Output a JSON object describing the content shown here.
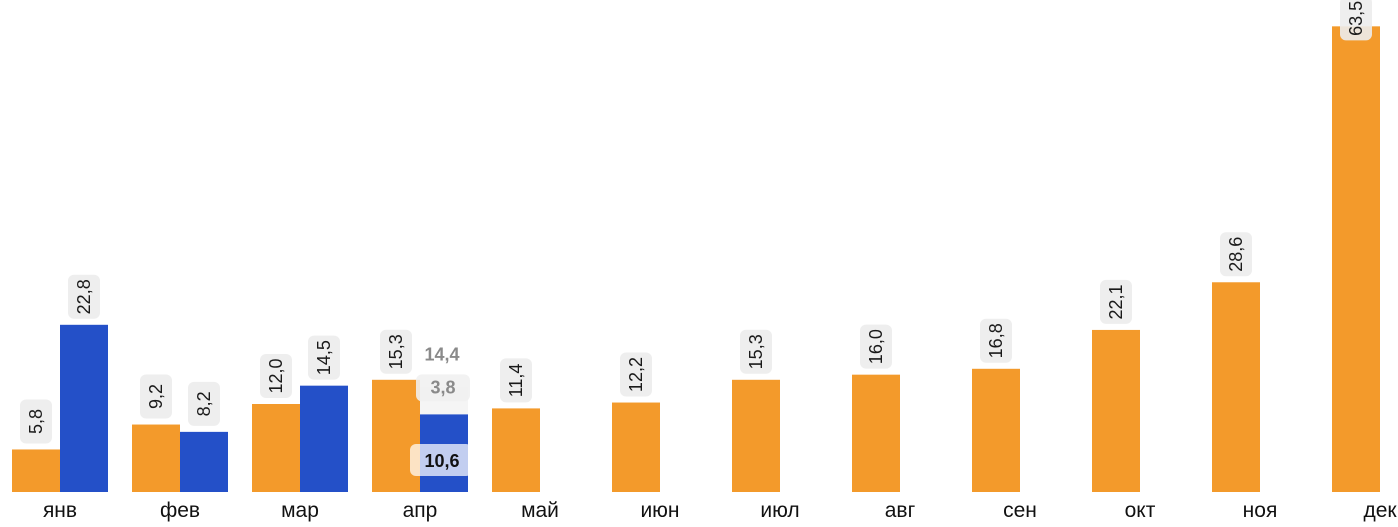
{
  "chart_data": {
    "type": "bar",
    "title": "",
    "xlabel": "",
    "ylabel": "",
    "ylim": [
      0,
      66
    ],
    "grid": false,
    "legend": "none",
    "categories": [
      "янв",
      "фев",
      "мар",
      "апр",
      "май",
      "июн",
      "июл",
      "авг",
      "сен",
      "окт",
      "ноя",
      "дек"
    ],
    "series": [
      {
        "color": "#f39a2b",
        "values": [
          5.8,
          9.2,
          12.0,
          15.3,
          11.4,
          12.2,
          15.3,
          16.0,
          16.8,
          22.1,
          28.6,
          63.5
        ],
        "labels": [
          "5,8",
          "9,2",
          "12,0",
          "15,3",
          "11,4",
          "12,2",
          "15,3",
          "16,0",
          "16,8",
          "22,1",
          "28,6",
          "63,5"
        ]
      },
      {
        "color": "#2450c8",
        "values": [
          22.8,
          8.2,
          14.5,
          10.6,
          null,
          null,
          null,
          null,
          null,
          null,
          null,
          null
        ],
        "labels": [
          "22,8",
          "8,2",
          "14,5",
          "10,6",
          "",
          "",
          "",
          "",
          "",
          "",
          "",
          ""
        ]
      }
    ],
    "april_breakdown": {
      "category_index": 3,
      "segments": [
        {
          "value": 10.6,
          "label": "10,6",
          "color": "#2450c8",
          "text_color": "#111111"
        },
        {
          "value": 3.8,
          "label": "3,8",
          "color": "#f5f5f5",
          "text_color": "#8a8a8a"
        }
      ],
      "total": {
        "value": 14.4,
        "label": "14,4",
        "text_color": "#8a8a8a"
      }
    }
  }
}
